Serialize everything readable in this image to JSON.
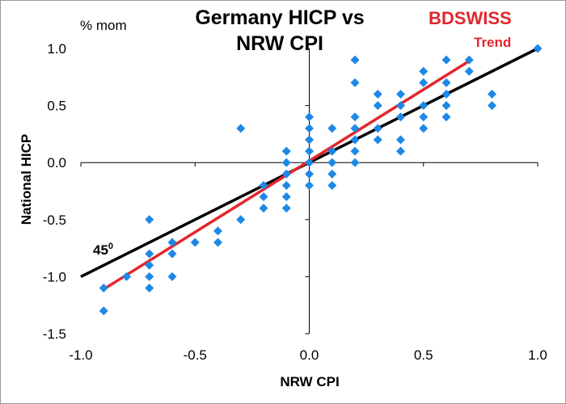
{
  "chart_data": {
    "type": "scatter",
    "title_lines": [
      "Germany HICP vs",
      "NRW CPI"
    ],
    "xlabel": "NRW  CPI",
    "ylabel": "National HICP",
    "y_unit": "% mom",
    "xlim": [
      -1.0,
      1.0
    ],
    "ylim": [
      -1.5,
      1.0
    ],
    "x_ticks": [
      -1.0,
      -0.5,
      0.0,
      0.5,
      1.0
    ],
    "y_ticks": [
      1.0,
      0.5,
      0.0,
      -0.5,
      -1.0,
      -1.5
    ],
    "x_tick_labels": [
      "-1.0",
      "-0.5",
      "0.0",
      "0.5",
      "1.0"
    ],
    "y_tick_labels": [
      "1.0",
      "0.5",
      "0.0",
      "-0.5",
      "-1.0",
      "-1.5"
    ],
    "grid": false,
    "colors": {
      "points": "#1e88e5",
      "line45": "#000000",
      "trend": "#e3262d"
    },
    "series": [
      {
        "kind": "points",
        "points": [
          [
            -0.9,
            -1.1
          ],
          [
            -0.9,
            -1.3
          ],
          [
            -0.8,
            -1.0
          ],
          [
            -0.7,
            -0.5
          ],
          [
            -0.7,
            -0.8
          ],
          [
            -0.7,
            -0.9
          ],
          [
            -0.7,
            -1.0
          ],
          [
            -0.7,
            -1.1
          ],
          [
            -0.6,
            -0.7
          ],
          [
            -0.6,
            -0.8
          ],
          [
            -0.6,
            -1.0
          ],
          [
            -0.5,
            -0.7
          ],
          [
            -0.4,
            -0.6
          ],
          [
            -0.4,
            -0.7
          ],
          [
            -0.3,
            -0.5
          ],
          [
            -0.3,
            0.3
          ],
          [
            -0.2,
            -0.2
          ],
          [
            -0.2,
            -0.3
          ],
          [
            -0.2,
            -0.4
          ],
          [
            -0.1,
            0.1
          ],
          [
            -0.1,
            0.0
          ],
          [
            -0.1,
            -0.1
          ],
          [
            -0.1,
            -0.2
          ],
          [
            -0.1,
            -0.3
          ],
          [
            -0.1,
            -0.4
          ],
          [
            0.0,
            0.4
          ],
          [
            0.0,
            0.3
          ],
          [
            0.0,
            0.2
          ],
          [
            0.0,
            0.1
          ],
          [
            0.0,
            0.0
          ],
          [
            0.0,
            -0.1
          ],
          [
            0.0,
            -0.2
          ],
          [
            0.1,
            0.3
          ],
          [
            0.1,
            0.1
          ],
          [
            0.1,
            0.0
          ],
          [
            0.1,
            -0.1
          ],
          [
            0.1,
            -0.2
          ],
          [
            0.2,
            0.9
          ],
          [
            0.2,
            0.7
          ],
          [
            0.2,
            0.4
          ],
          [
            0.2,
            0.3
          ],
          [
            0.2,
            0.2
          ],
          [
            0.2,
            0.1
          ],
          [
            0.2,
            0.0
          ],
          [
            0.3,
            0.6
          ],
          [
            0.3,
            0.5
          ],
          [
            0.3,
            0.3
          ],
          [
            0.3,
            0.2
          ],
          [
            0.4,
            0.6
          ],
          [
            0.4,
            0.5
          ],
          [
            0.4,
            0.4
          ],
          [
            0.4,
            0.2
          ],
          [
            0.4,
            0.1
          ],
          [
            0.5,
            0.8
          ],
          [
            0.5,
            0.7
          ],
          [
            0.5,
            0.5
          ],
          [
            0.5,
            0.4
          ],
          [
            0.5,
            0.3
          ],
          [
            0.6,
            0.9
          ],
          [
            0.6,
            0.7
          ],
          [
            0.6,
            0.6
          ],
          [
            0.6,
            0.5
          ],
          [
            0.6,
            0.4
          ],
          [
            0.7,
            0.9
          ],
          [
            0.7,
            0.8
          ],
          [
            0.8,
            0.6
          ],
          [
            0.8,
            0.5
          ],
          [
            1.0,
            1.0
          ]
        ]
      },
      {
        "name": "45⁰",
        "kind": "line",
        "points": [
          [
            -1.0,
            -1.0
          ],
          [
            1.0,
            1.0
          ]
        ]
      },
      {
        "name": "Trend",
        "kind": "line",
        "points": [
          [
            -0.9,
            -1.11
          ],
          [
            0.7,
            0.89
          ]
        ]
      }
    ],
    "annotations": [
      {
        "text": "45",
        "superscript": "0"
      },
      {
        "text": "Trend"
      }
    ]
  },
  "logo": {
    "text": "BDSWISS"
  }
}
